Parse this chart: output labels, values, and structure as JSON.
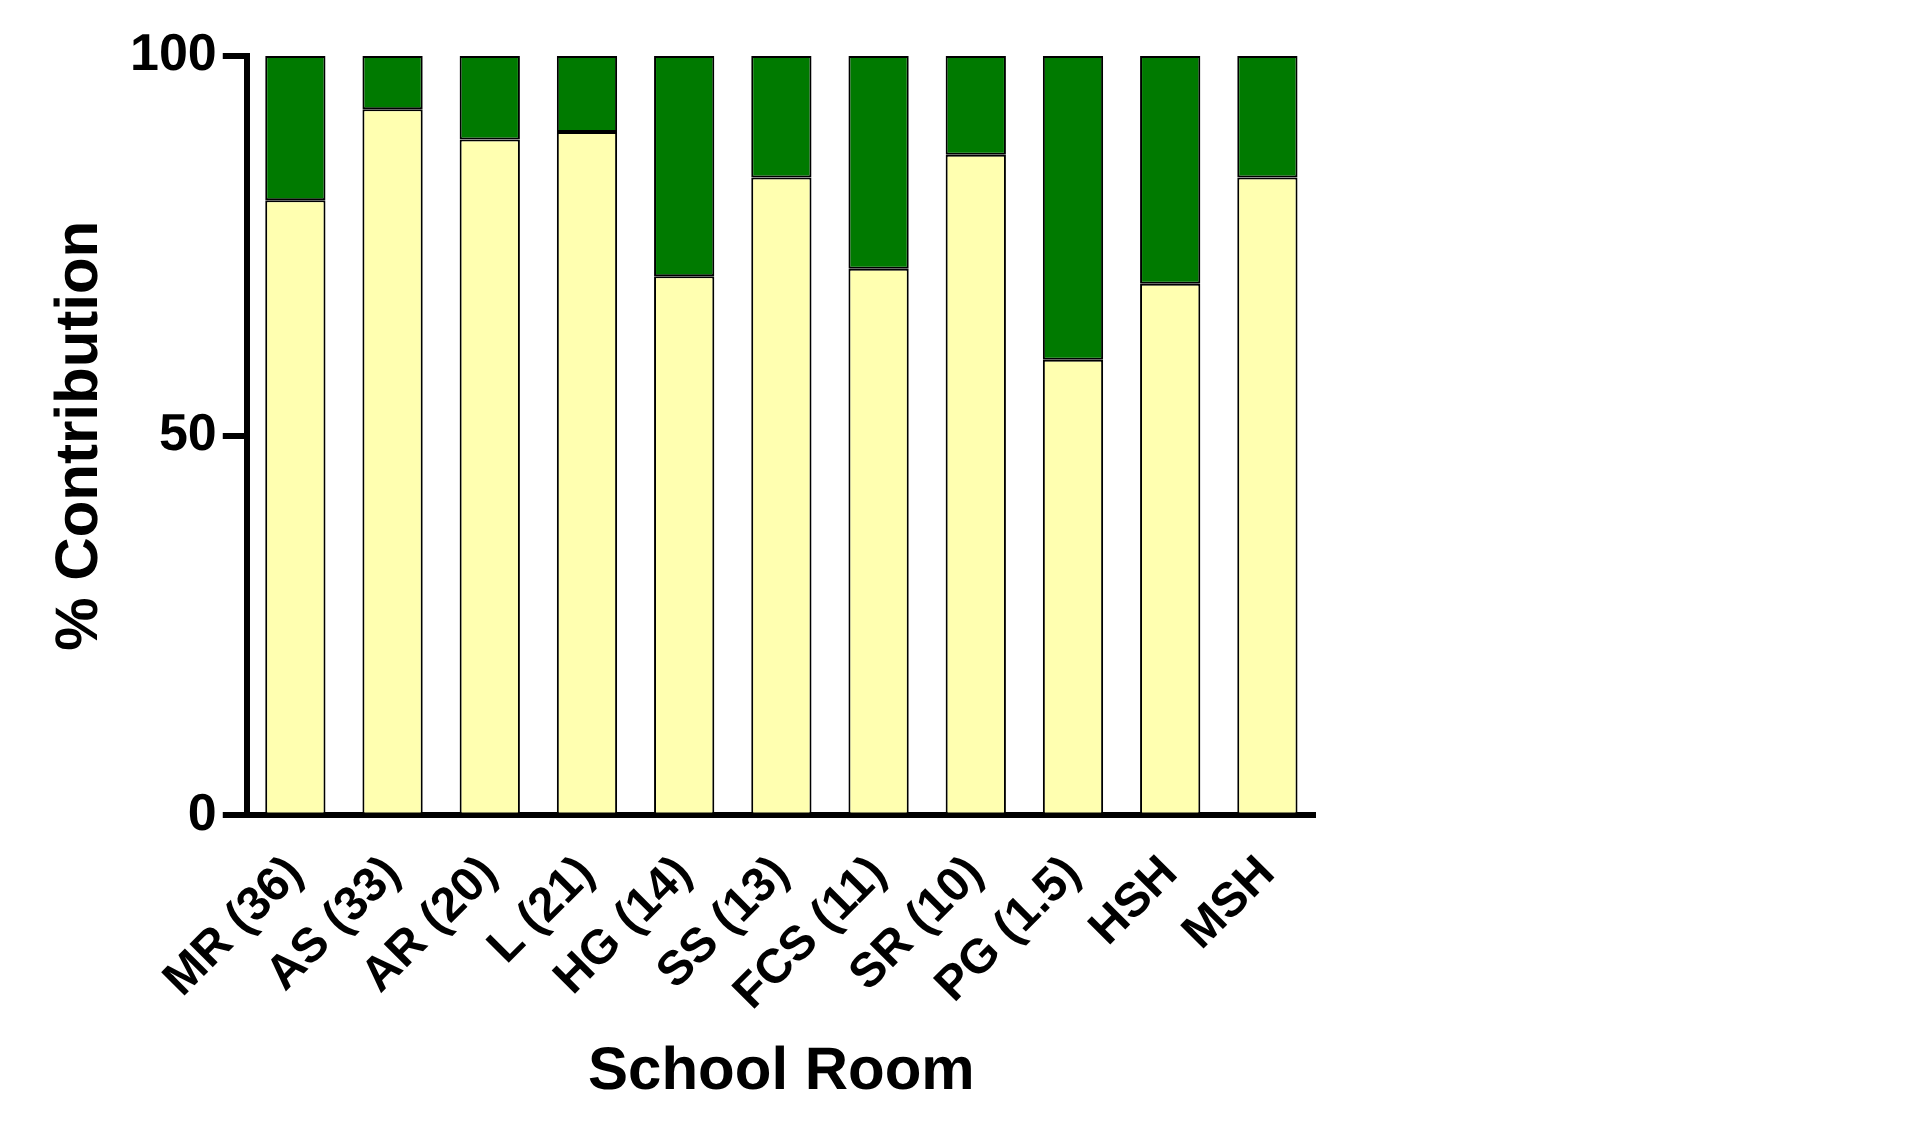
{
  "chart_data": {
    "type": "bar",
    "stacked": true,
    "xlabel": "School Room",
    "ylabel": "% Contribution",
    "categories": [
      "MR (36)",
      "AS (33)",
      "AR (20)",
      "L (21)",
      "HG (14)",
      "SS (13)",
      "FCS (11)",
      "SR (10)",
      "PG (1.5)",
      "HSH",
      "MSH"
    ],
    "series": [
      {
        "color": "#ffffb0",
        "values": [
          81,
          93,
          89,
          90,
          71,
          84,
          72,
          87,
          60,
          70,
          84
        ]
      },
      {
        "color": "#007a00",
        "values": [
          19,
          7,
          11,
          10,
          29,
          16,
          28,
          13,
          40,
          30,
          16
        ]
      }
    ],
    "ylim": [
      0,
      100
    ],
    "yticks": [
      0,
      50,
      100
    ],
    "grid": false
  }
}
